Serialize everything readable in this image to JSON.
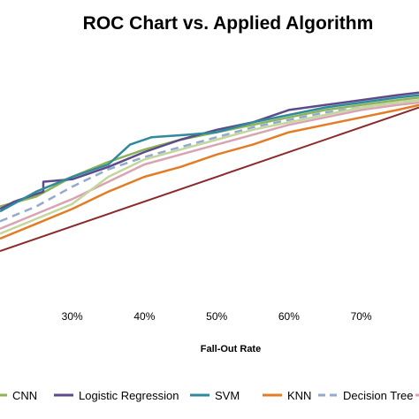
{
  "chart_data": {
    "type": "line",
    "title": "ROC Chart  vs. Applied Algorithm",
    "xlabel": "Fall-Out Rate",
    "ylabel": "",
    "xlim": [
      0.2,
      0.78
    ],
    "ylim": [
      0.0,
      1.0
    ],
    "x_ticks": [
      0.3,
      0.4,
      0.5,
      0.6,
      0.7
    ],
    "x_tick_labels": [
      "30%",
      "40%",
      "50%",
      "60%",
      "70%"
    ],
    "grid": false,
    "legend_position": "bottom",
    "series": [
      {
        "name": "CNN",
        "color": "#8db35a",
        "dash": "solid",
        "x": [
          0.2,
          0.25,
          0.3,
          0.35,
          0.4,
          0.45,
          0.5,
          0.55,
          0.6,
          0.65,
          0.7,
          0.75,
          0.78
        ],
        "y": [
          0.38,
          0.42,
          0.5,
          0.56,
          0.61,
          0.65,
          0.68,
          0.71,
          0.74,
          0.77,
          0.79,
          0.81,
          0.82
        ]
      },
      {
        "name": "Logistic Regression",
        "color": "#5d4a8a",
        "dash": "solid",
        "x": [
          0.2,
          0.22,
          0.24,
          0.26,
          0.26,
          0.3,
          0.35,
          0.4,
          0.45,
          0.5,
          0.55,
          0.6,
          0.65,
          0.7,
          0.75,
          0.78
        ],
        "y": [
          0.37,
          0.4,
          0.42,
          0.44,
          0.48,
          0.49,
          0.54,
          0.6,
          0.65,
          0.69,
          0.72,
          0.77,
          0.79,
          0.81,
          0.83,
          0.84
        ]
      },
      {
        "name": "SVM",
        "color": "#2f8a9c",
        "dash": "solid",
        "x": [
          0.2,
          0.25,
          0.3,
          0.35,
          0.38,
          0.41,
          0.46,
          0.5,
          0.55,
          0.6,
          0.65,
          0.7,
          0.75,
          0.78
        ],
        "y": [
          0.36,
          0.44,
          0.5,
          0.55,
          0.63,
          0.66,
          0.67,
          0.68,
          0.72,
          0.75,
          0.78,
          0.8,
          0.82,
          0.83
        ]
      },
      {
        "name": "KNN",
        "color": "#e37c26",
        "dash": "solid",
        "x": [
          0.2,
          0.25,
          0.3,
          0.35,
          0.4,
          0.45,
          0.5,
          0.55,
          0.6,
          0.65,
          0.7,
          0.75,
          0.78
        ],
        "y": [
          0.25,
          0.31,
          0.37,
          0.44,
          0.5,
          0.54,
          0.59,
          0.63,
          0.68,
          0.71,
          0.74,
          0.77,
          0.79
        ]
      },
      {
        "name": "Decision Tree",
        "color": "#93a9cf",
        "dash": "dashed",
        "x": [
          0.2,
          0.25,
          0.3,
          0.35,
          0.4,
          0.45,
          0.5,
          0.55,
          0.6,
          0.65,
          0.7,
          0.75,
          0.78
        ],
        "y": [
          0.32,
          0.38,
          0.46,
          0.53,
          0.58,
          0.62,
          0.66,
          0.7,
          0.73,
          0.76,
          0.78,
          0.8,
          0.81
        ]
      },
      {
        "name": "",
        "color": "#d9a3b3",
        "dash": "solid",
        "x": [
          0.2,
          0.25,
          0.3,
          0.35,
          0.4,
          0.45,
          0.5,
          0.55,
          0.6,
          0.65,
          0.7,
          0.75,
          0.78
        ],
        "y": [
          0.29,
          0.35,
          0.41,
          0.48,
          0.55,
          0.59,
          0.63,
          0.67,
          0.71,
          0.74,
          0.77,
          0.79,
          0.8
        ]
      },
      {
        "name": "",
        "color": "#c3d69b",
        "dash": "solid",
        "x": [
          0.2,
          0.25,
          0.3,
          0.35,
          0.4,
          0.45,
          0.5,
          0.55,
          0.6,
          0.65,
          0.7,
          0.75,
          0.78
        ],
        "y": [
          0.27,
          0.33,
          0.39,
          0.5,
          0.57,
          0.61,
          0.65,
          0.69,
          0.72,
          0.75,
          0.78,
          0.8,
          0.81
        ]
      },
      {
        "name": "",
        "color": "#8b2a2a",
        "dash": "solid",
        "x": [
          0.2,
          0.78
        ],
        "y": [
          0.2,
          0.78
        ]
      }
    ],
    "legend": [
      {
        "label": "CNN",
        "color": "#8db35a",
        "dash": "solid"
      },
      {
        "label": "Logistic Regression",
        "color": "#5d4a8a",
        "dash": "solid"
      },
      {
        "label": "SVM",
        "color": "#2f8a9c",
        "dash": "solid"
      },
      {
        "label": "KNN",
        "color": "#e37c26",
        "dash": "solid"
      },
      {
        "label": "Decision Tree",
        "color": "#93a9cf",
        "dash": "dashed"
      },
      {
        "label": "",
        "color": "#d9a3b3",
        "dash": "solid"
      }
    ]
  }
}
